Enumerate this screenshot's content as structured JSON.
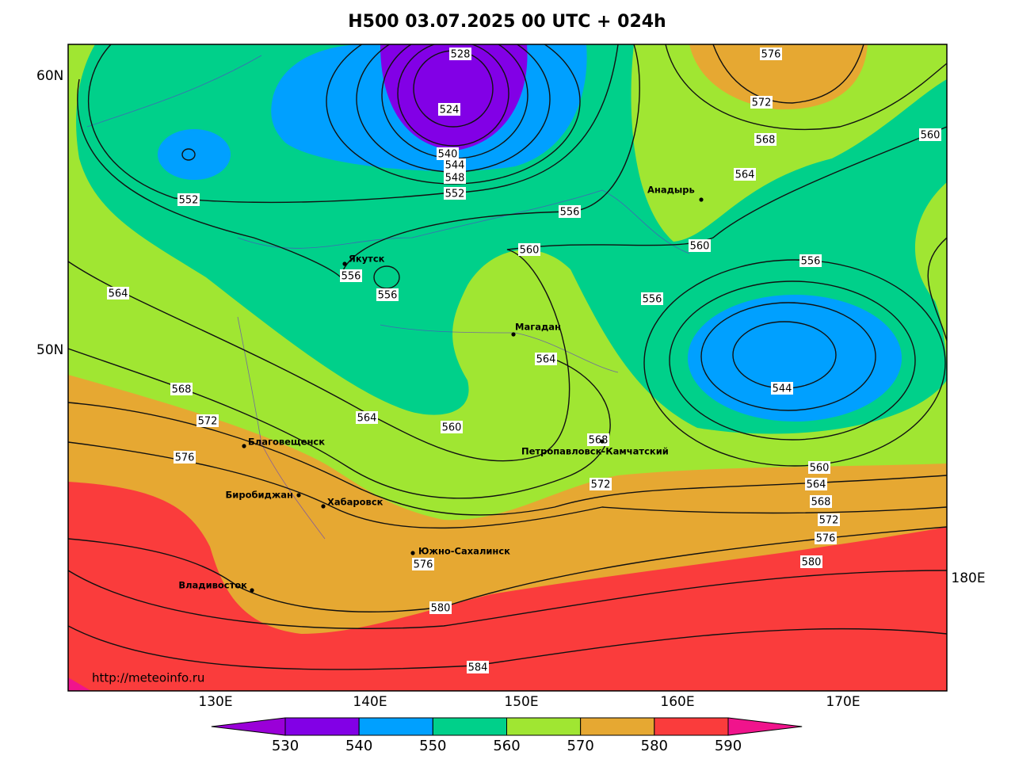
{
  "title": "H500  03.07.2025 00 UTC + 024h",
  "lat_labels": [
    "60N",
    "50N"
  ],
  "lon_labels": [
    "130E",
    "140E",
    "150E",
    "160E",
    "170E",
    "180E"
  ],
  "contour_labels": [
    528,
    524,
    540,
    544,
    548,
    552,
    552,
    556,
    560,
    556,
    556,
    564,
    564,
    568,
    572,
    576,
    564,
    560,
    568,
    572,
    576,
    580,
    584,
    580,
    576,
    572,
    568,
    564,
    560,
    544,
    556,
    556,
    560,
    564,
    568,
    572,
    576,
    560
  ],
  "cities": [
    "Якутск",
    "Магадан",
    "Анадырь",
    "Благовещенск",
    "Биробиджан",
    "Хабаровск",
    "Южно-Сахалинск",
    "Владивосток",
    "Петропавловск-Камчатский"
  ],
  "source": "http://meteoinfo.ru",
  "colorbar": {
    "ticks": [
      530,
      540,
      550,
      560,
      570,
      580,
      590
    ],
    "colors": [
      "#9a00d8",
      "#8200e6",
      "#00a0ff",
      "#00d08a",
      "#a0e632",
      "#e6a832",
      "#fa3c3c",
      "#f0148c"
    ]
  }
}
